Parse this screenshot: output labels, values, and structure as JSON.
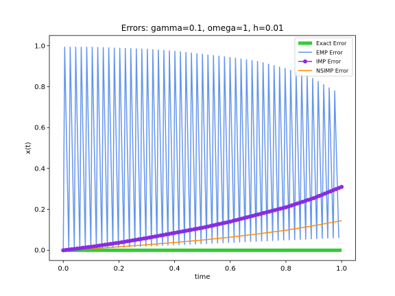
{
  "chart_data": {
    "type": "line",
    "title": "Errors: gamma=0.1, omega=1, h=0.01",
    "xlabel": "time",
    "ylabel": "x(t)",
    "xlim": [
      -0.05,
      1.05
    ],
    "ylim": [
      -0.05,
      1.05
    ],
    "xticks": [
      0.0,
      0.2,
      0.4,
      0.6,
      0.8,
      1.0
    ],
    "xtick_labels": [
      "0.0",
      "0.2",
      "0.4",
      "0.6",
      "0.8",
      "1.0"
    ],
    "yticks": [
      0.0,
      0.2,
      0.4,
      0.6,
      0.8,
      1.0
    ],
    "ytick_labels": [
      "0.0",
      "0.2",
      "0.4",
      "0.6",
      "0.8",
      "1.0"
    ],
    "legend_position": "top-right",
    "series": [
      {
        "name": "Exact Error",
        "color": "#33cc33",
        "style": "thick-line",
        "x": [
          0.0,
          1.0
        ],
        "y": [
          0.0,
          0.0
        ]
      },
      {
        "name": "EMP Error",
        "color": "#6495ed",
        "style": "zigzag",
        "x_start": 0.0,
        "x_end": 0.99,
        "n_oscillations": 50,
        "y_low_start": 0.0,
        "y_low_end": 0.06,
        "envelope": {
          "x": [
            0.01,
            0.1,
            0.2,
            0.3,
            0.4,
            0.5,
            0.6,
            0.7,
            0.8,
            0.9,
            0.95,
            0.99
          ],
          "y": [
            0.995,
            0.995,
            0.99,
            0.985,
            0.975,
            0.96,
            0.945,
            0.925,
            0.89,
            0.84,
            0.8,
            0.77
          ]
        }
      },
      {
        "name": "IMP Error",
        "color": "#8a2be2",
        "style": "line-markers",
        "x": [
          0.0,
          0.1,
          0.2,
          0.3,
          0.4,
          0.5,
          0.6,
          0.7,
          0.8,
          0.9,
          1.0
        ],
        "y": [
          0.0,
          0.017,
          0.037,
          0.06,
          0.085,
          0.11,
          0.14,
          0.175,
          0.21,
          0.255,
          0.31
        ]
      },
      {
        "name": "NSIMP Error",
        "color": "#ff8c00",
        "style": "line",
        "x": [
          0.0,
          0.1,
          0.2,
          0.3,
          0.4,
          0.5,
          0.6,
          0.7,
          0.8,
          0.9,
          1.0
        ],
        "y": [
          0.0,
          0.008,
          0.017,
          0.027,
          0.038,
          0.05,
          0.064,
          0.08,
          0.098,
          0.12,
          0.145
        ]
      }
    ]
  }
}
